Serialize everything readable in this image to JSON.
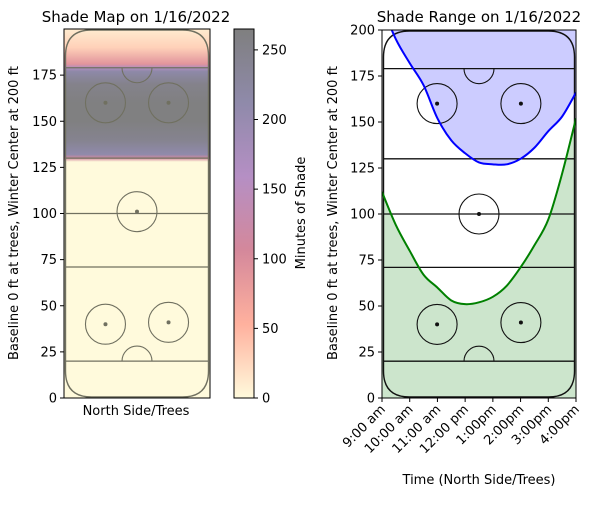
{
  "chart_data": [
    {
      "type": "heatmap",
      "title": "Shade Map on 1/16/2022",
      "xlabel": "North Side/Trees",
      "ylabel": "Baseline 0 ft at trees, Winter Center at 200 ft",
      "ylim": [
        0,
        200
      ],
      "yticks": [
        "0",
        "25",
        "50",
        "75",
        "100",
        "125",
        "150",
        "175"
      ],
      "colorbar": {
        "label": "Minutes of Shade",
        "range": [
          0,
          265
        ],
        "ticks": [
          "0",
          "50",
          "100",
          "150",
          "200",
          "250"
        ],
        "colors": [
          "#fffadc",
          "#ffb19e",
          "#d4889b",
          "#b58fc4",
          "#8f8aaa",
          "#7f7f7f"
        ]
      },
      "shade_profile": {
        "y_ft": [
          0,
          128,
          130,
          132,
          140,
          150,
          160,
          170,
          177,
          179,
          181,
          190,
          200
        ],
        "minutes": [
          0,
          0,
          110,
          210,
          245,
          262,
          262,
          250,
          215,
          165,
          90,
          30,
          10
        ]
      },
      "rink": {
        "lines_ft": [
          20,
          71,
          100,
          130,
          179
        ],
        "faceoff_spots": [
          [
            -0.6,
            40
          ],
          [
            0.6,
            41
          ],
          [
            0.0,
            101
          ],
          [
            -0.6,
            160
          ],
          [
            0.6,
            160
          ]
        ]
      }
    },
    {
      "type": "line",
      "title": "Shade Range on 1/16/2022",
      "xlabel": "Time (North Side/Trees)",
      "ylabel": "Baseline 0 ft at trees, Winter Center at 200 ft",
      "ylim": [
        0,
        200
      ],
      "xticks": [
        "9:00 am",
        "10:00 am",
        "11:00 am",
        "12:00 pm",
        "1:00pm",
        "2:00pm",
        "3:00pm",
        "4:00pm"
      ],
      "yticks": [
        "0",
        "25",
        "50",
        "75",
        "100",
        "125",
        "150",
        "175",
        "200"
      ],
      "series": [
        {
          "color": "#0000ff",
          "fill": "#ccccff",
          "x": [
            9.0,
            9.5,
            10.0,
            10.5,
            11.0,
            11.5,
            12.0,
            12.5,
            13.0,
            13.5,
            14.0,
            14.5,
            15.0,
            15.5,
            16.0
          ],
          "y": [
            213,
            195,
            182,
            170,
            152,
            140,
            133,
            128,
            127,
            127,
            130,
            136,
            145,
            153,
            166
          ]
        },
        {
          "color": "#008000",
          "fill": "#cce5cc",
          "x": [
            9.0,
            9.5,
            10.0,
            10.5,
            11.0,
            11.5,
            12.0,
            12.5,
            13.0,
            13.5,
            14.0,
            14.5,
            15.0,
            15.5,
            16.0
          ],
          "y": [
            112,
            94,
            80,
            67,
            60,
            53,
            51,
            52,
            55,
            61,
            71,
            83,
            97,
            122,
            152
          ]
        }
      ],
      "rink": {
        "lines_ft": [
          20,
          71,
          100,
          130,
          179
        ],
        "faceoff_spots": [
          [
            -0.6,
            40
          ],
          [
            0.6,
            41
          ],
          [
            0.0,
            100
          ],
          [
            -0.6,
            160
          ],
          [
            0.6,
            160
          ]
        ]
      }
    }
  ]
}
